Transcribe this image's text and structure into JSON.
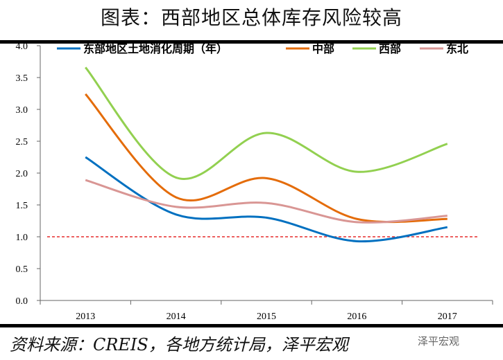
{
  "title": "图表：西部地区总体库存风险较高",
  "source": "资料来源：CREIS，各地方统计局，泽平宏观",
  "watermark": "泽平宏观",
  "chart_data": {
    "type": "line",
    "categories": [
      "2013",
      "2014",
      "2015",
      "2016",
      "2017"
    ],
    "ylim": [
      0,
      4
    ],
    "yticks": [
      "0.0",
      "0.5",
      "1.0",
      "1.5",
      "2.0",
      "2.5",
      "3.0",
      "3.5",
      "4.0"
    ],
    "legend_position": "top",
    "reference_line": {
      "value": 1.0,
      "color": "#e00000",
      "style": "dashed"
    },
    "series": [
      {
        "name": "东部地区土地消化周期（年）",
        "color": "#0070c0",
        "values": [
          2.25,
          1.35,
          1.3,
          0.93,
          1.15
        ]
      },
      {
        "name": "中部",
        "color": "#e46c0a",
        "values": [
          3.24,
          1.62,
          1.92,
          1.28,
          1.28
        ]
      },
      {
        "name": "西部",
        "color": "#92d050",
        "values": [
          3.66,
          1.93,
          2.63,
          2.02,
          2.46
        ]
      },
      {
        "name": "东北",
        "color": "#d99694",
        "values": [
          1.89,
          1.47,
          1.53,
          1.23,
          1.33
        ]
      }
    ]
  }
}
